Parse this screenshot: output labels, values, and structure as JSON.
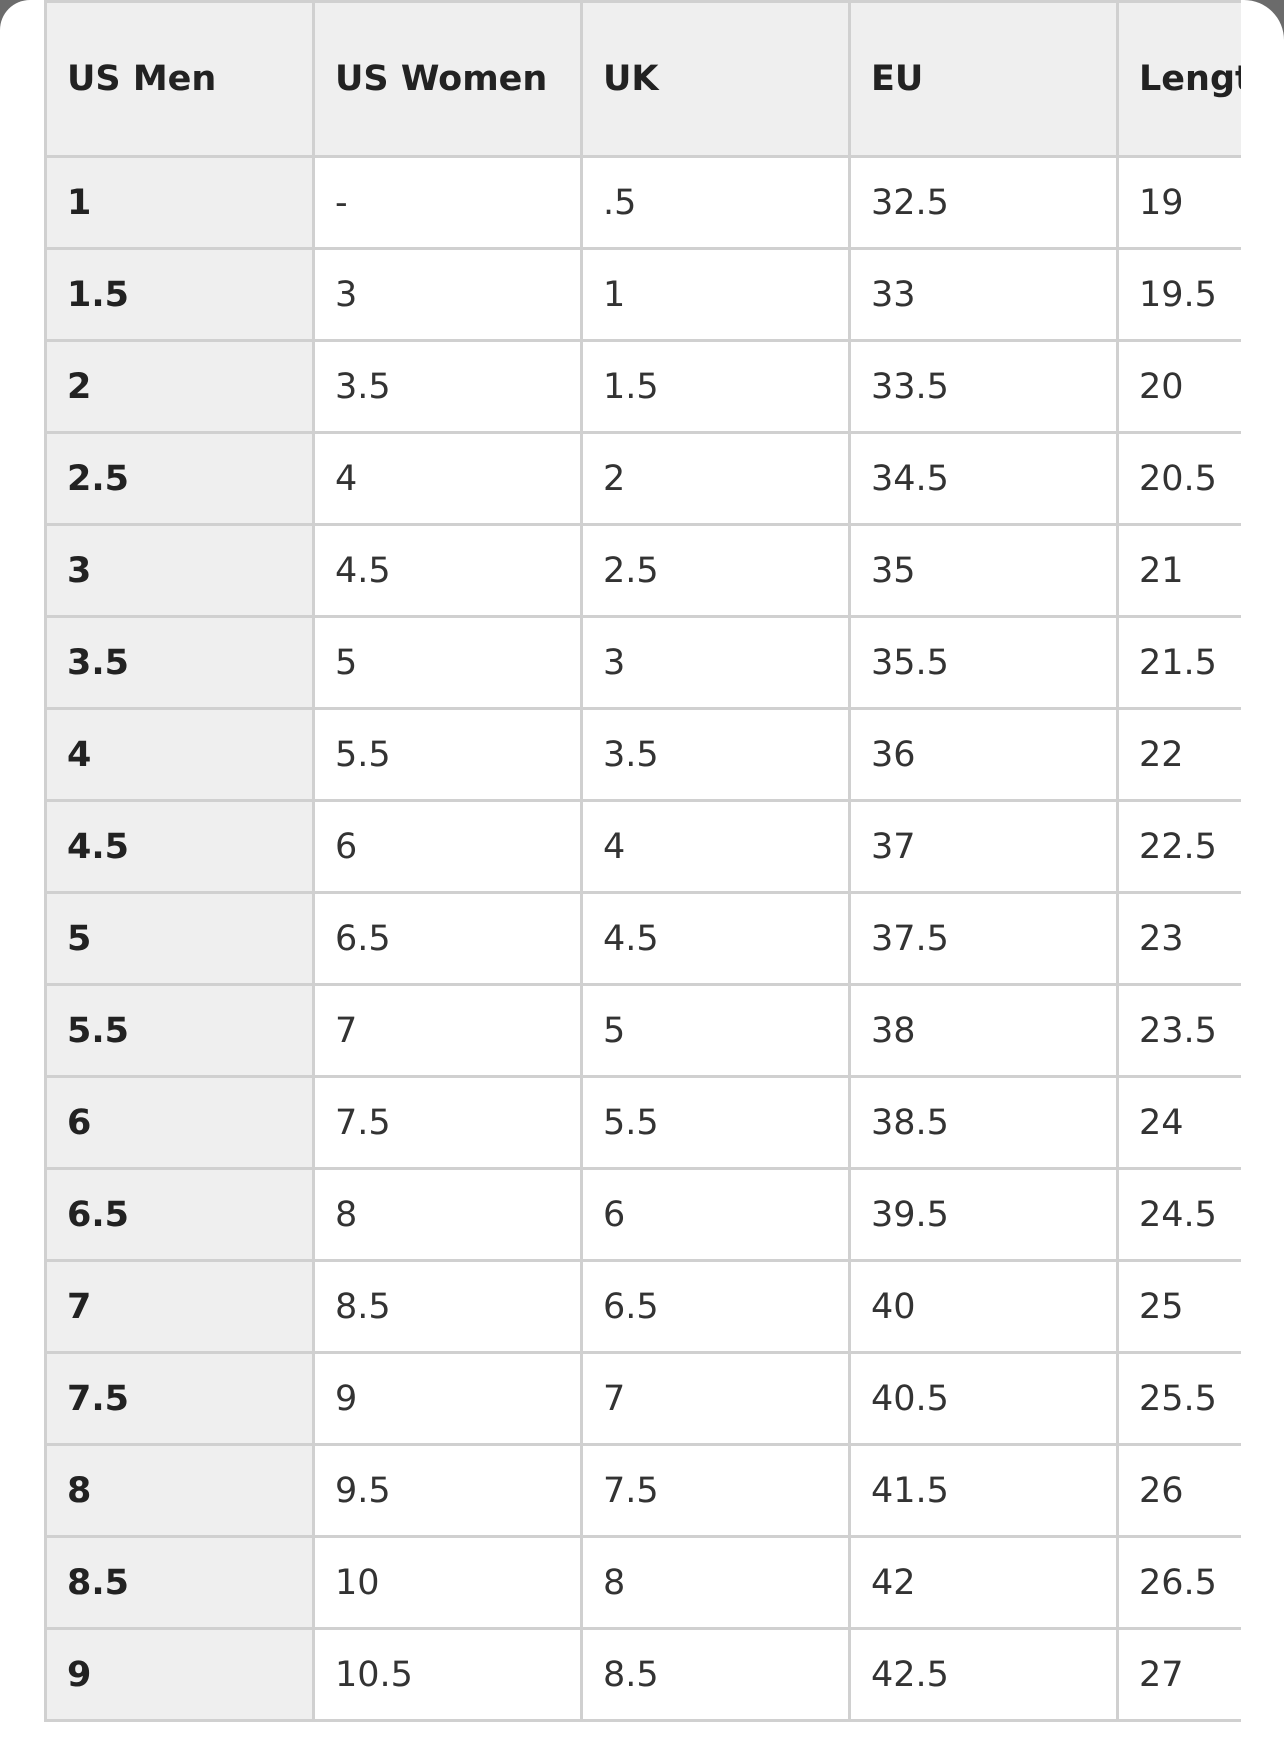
{
  "table": {
    "headers": [
      "US Men",
      "US Women",
      "UK",
      "EU",
      "Length (cm)"
    ],
    "rows": [
      [
        "1",
        "-",
        ".5",
        "32.5",
        "19"
      ],
      [
        "1.5",
        "3",
        "1",
        "33",
        "19.5"
      ],
      [
        "2",
        "3.5",
        "1.5",
        "33.5",
        "20"
      ],
      [
        "2.5",
        "4",
        "2",
        "34.5",
        "20.5"
      ],
      [
        "3",
        "4.5",
        "2.5",
        "35",
        "21"
      ],
      [
        "3.5",
        "5",
        "3",
        "35.5",
        "21.5"
      ],
      [
        "4",
        "5.5",
        "3.5",
        "36",
        "22"
      ],
      [
        "4.5",
        "6",
        "4",
        "37",
        "22.5"
      ],
      [
        "5",
        "6.5",
        "4.5",
        "37.5",
        "23"
      ],
      [
        "5.5",
        "7",
        "5",
        "38",
        "23.5"
      ],
      [
        "6",
        "7.5",
        "5.5",
        "38.5",
        "24"
      ],
      [
        "6.5",
        "8",
        "6",
        "39.5",
        "24.5"
      ],
      [
        "7",
        "8.5",
        "6.5",
        "40",
        "25"
      ],
      [
        "7.5",
        "9",
        "7",
        "40.5",
        "25.5"
      ],
      [
        "8",
        "9.5",
        "7.5",
        "41.5",
        "26"
      ],
      [
        "8.5",
        "10",
        "8",
        "42",
        "26.5"
      ],
      [
        "9",
        "10.5",
        "8.5",
        "42.5",
        "27"
      ]
    ]
  }
}
